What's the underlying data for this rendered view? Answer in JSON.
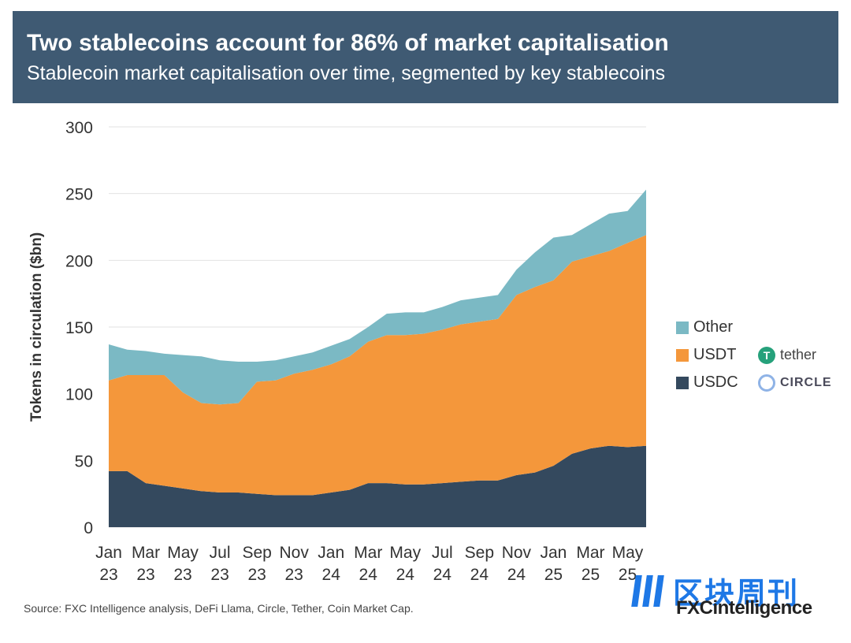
{
  "header": {
    "title": "Two stablecoins account for 86% of market capitalisation",
    "subtitle": "Stablecoin market capitalisation over time, segmented by key stablecoins"
  },
  "chart_data": {
    "type": "area",
    "stacked": true,
    "ylabel": "Tokens in circulation ($bn)",
    "ylim": [
      0,
      300
    ],
    "yticks": [
      0,
      50,
      100,
      150,
      200,
      250,
      300
    ],
    "grid": true,
    "legend_position": "right",
    "xtick_labels": [
      [
        "Jan",
        "23"
      ],
      [
        "Mar",
        "23"
      ],
      [
        "May",
        "23"
      ],
      [
        "Jul",
        "23"
      ],
      [
        "Sep",
        "23"
      ],
      [
        "Nov",
        "23"
      ],
      [
        "Jan",
        "24"
      ],
      [
        "Mar",
        "24"
      ],
      [
        "May",
        "24"
      ],
      [
        "Jul",
        "24"
      ],
      [
        "Sep",
        "24"
      ],
      [
        "Nov",
        "24"
      ],
      [
        "Jan",
        "25"
      ],
      [
        "Mar",
        "25"
      ],
      [
        "May",
        "25"
      ]
    ],
    "x": [
      "Jan 23",
      "Feb 23",
      "Mar 23",
      "Apr 23",
      "May 23",
      "Jun 23",
      "Jul 23",
      "Aug 23",
      "Sep 23",
      "Oct 23",
      "Nov 23",
      "Dec 23",
      "Jan 24",
      "Feb 24",
      "Mar 24",
      "Apr 24",
      "May 24",
      "Jun 24",
      "Jul 24",
      "Aug 24",
      "Sep 24",
      "Oct 24",
      "Nov 24",
      "Dec 24",
      "Jan 25",
      "Feb 25",
      "Mar 25",
      "Apr 25",
      "May 25",
      "Jun 25"
    ],
    "series": [
      {
        "name": "USDC",
        "color": "#34495e",
        "values": [
          42,
          42,
          33,
          31,
          29,
          27,
          26,
          26,
          25,
          24,
          24,
          24,
          26,
          28,
          33,
          33,
          32,
          32,
          33,
          34,
          35,
          35,
          39,
          41,
          46,
          55,
          59,
          61,
          60,
          61
        ]
      },
      {
        "name": "USDT",
        "color": "#f4973b",
        "values": [
          68,
          72,
          81,
          83,
          72,
          66,
          66,
          67,
          84,
          86,
          91,
          94,
          96,
          100,
          106,
          111,
          112,
          113,
          115,
          118,
          119,
          121,
          135,
          139,
          139,
          144,
          144,
          146,
          153,
          158
        ]
      },
      {
        "name": "Other",
        "color": "#7bb9c4",
        "values": [
          27,
          19,
          18,
          16,
          28,
          35,
          33,
          31,
          15,
          15,
          13,
          13,
          14,
          13,
          11,
          16,
          17,
          16,
          17,
          18,
          18,
          18,
          19,
          26,
          32,
          20,
          24,
          28,
          24,
          34
        ]
      }
    ]
  },
  "legend": {
    "items": [
      {
        "label": "Other",
        "color": "#7bb9c4",
        "brand": ""
      },
      {
        "label": "USDT",
        "color": "#f4973b",
        "brand": "tether"
      },
      {
        "label": "USDC",
        "color": "#34495e",
        "brand": "CIRCLE"
      }
    ]
  },
  "source": "Source: FXC Intelligence analysis, DeFi Llama, Circle, Tether, Coin Market Cap.",
  "watermark": {
    "text": "区块周刊",
    "logo_text": "FXCintelligence"
  },
  "icons": {
    "tether": "tether-icon",
    "circle": "circle-icon"
  }
}
